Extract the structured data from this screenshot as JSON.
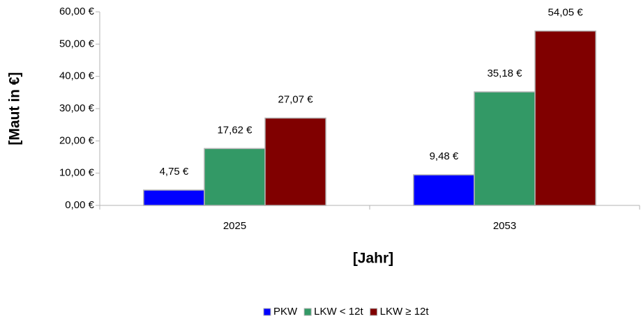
{
  "chart_data": {
    "type": "bar",
    "y_label": "[Maut in €]",
    "x_label": "[Jahr]",
    "categories": [
      "2025",
      "2053"
    ],
    "series": [
      {
        "name": "PKW",
        "color": "#0000ff",
        "values": [
          4.75,
          9.48
        ],
        "value_labels": [
          "4,75 €",
          "9,48 €"
        ]
      },
      {
        "name": "LKW < 12t",
        "color": "#339966",
        "values": [
          17.62,
          35.18
        ],
        "value_labels": [
          "17,62 €",
          "35,18 €"
        ]
      },
      {
        "name": "LKW ≥ 12t",
        "color": "#800000",
        "values": [
          27.07,
          54.05
        ],
        "value_labels": [
          "27,07 €",
          "54,05 €"
        ]
      }
    ],
    "ylim": [
      0,
      60
    ],
    "yticks": [
      {
        "value": 0,
        "label": "0,00 €"
      },
      {
        "value": 10,
        "label": "10,00 €"
      },
      {
        "value": 20,
        "label": "20,00 €"
      },
      {
        "value": 30,
        "label": "30,00 €"
      },
      {
        "value": 40,
        "label": "40,00 €"
      },
      {
        "value": 50,
        "label": "50,00 €"
      },
      {
        "value": 60,
        "label": "60,00 €"
      }
    ],
    "grid": false,
    "legend": "bottom"
  }
}
